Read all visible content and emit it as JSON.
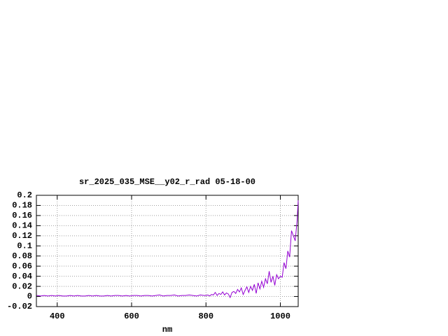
{
  "chart_data": {
    "type": "line",
    "title": "sr_2025_035_MSE__y02_r_rad 05-18-00",
    "x_label": "nm",
    "x": [
      345,
      355,
      365,
      375,
      385,
      395,
      405,
      415,
      425,
      435,
      445,
      455,
      465,
      475,
      485,
      495,
      505,
      515,
      525,
      535,
      545,
      555,
      565,
      575,
      585,
      595,
      605,
      615,
      625,
      635,
      645,
      655,
      665,
      675,
      685,
      695,
      705,
      715,
      725,
      735,
      745,
      755,
      765,
      775,
      785,
      795,
      800,
      805,
      810,
      815,
      820,
      825,
      830,
      835,
      840,
      845,
      850,
      855,
      860,
      865,
      870,
      875,
      880,
      885,
      890,
      895,
      900,
      905,
      910,
      915,
      920,
      925,
      930,
      935,
      940,
      945,
      950,
      955,
      960,
      965,
      970,
      975,
      980,
      985,
      990,
      995,
      1000,
      1005,
      1010,
      1015,
      1020,
      1025,
      1030,
      1035,
      1040,
      1045,
      1048
    ],
    "series": [
      {
        "color": "#9400d3",
        "values": [
          0.002,
          0.001,
          0.002,
          0.001,
          0.002,
          0.001,
          0.002,
          0.001,
          0.001,
          0.002,
          0.001,
          0.002,
          0.001,
          0.001,
          0.002,
          0.001,
          0.002,
          0.001,
          0.001,
          0.002,
          0.001,
          0.002,
          0.002,
          0.001,
          0.002,
          0.001,
          0.002,
          0.002,
          0.001,
          0.002,
          0.002,
          0.001,
          0.002,
          0.003,
          0.001,
          0.002,
          0.002,
          0.003,
          0.001,
          0.002,
          0.002,
          0.003,
          0.002,
          0.001,
          0.003,
          0.002,
          0.002,
          0.003,
          0.001,
          0.004,
          0.003,
          0.008,
          0.002,
          0.006,
          0.004,
          0.009,
          0.003,
          0.007,
          0.005,
          -0.002,
          0.008,
          0.01,
          0.006,
          0.014,
          0.009,
          0.017,
          0.004,
          0.012,
          0.019,
          0.008,
          0.02,
          0.012,
          0.024,
          0.006,
          0.027,
          0.015,
          0.03,
          0.018,
          0.035,
          0.025,
          0.05,
          0.028,
          0.04,
          0.022,
          0.043,
          0.035,
          0.04,
          0.038,
          0.067,
          0.055,
          0.09,
          0.078,
          0.13,
          0.12,
          0.11,
          0.15,
          0.19
        ]
      }
    ],
    "xlim": [
      344,
      1048
    ],
    "ylim": [
      -0.02,
      0.2
    ],
    "xticks": [
      400,
      600,
      800,
      1000
    ],
    "yticks": [
      -0.02,
      0,
      0.02,
      0.04,
      0.06,
      0.08,
      0.1,
      0.12,
      0.14,
      0.16,
      0.18,
      0.2
    ],
    "grid": true
  }
}
